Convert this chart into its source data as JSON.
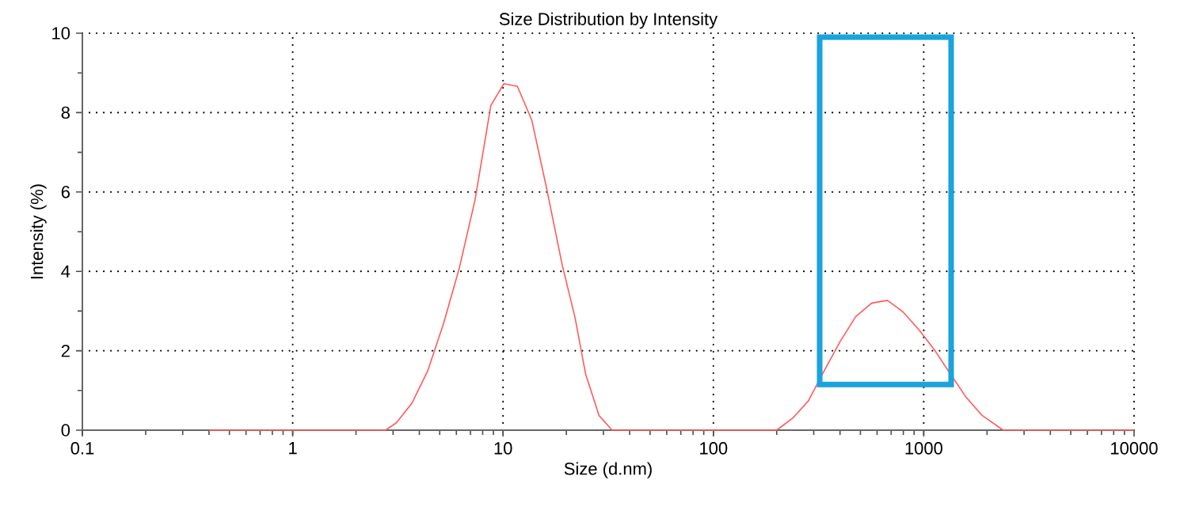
{
  "chart_data": {
    "type": "line",
    "title": "Size Distribution by Intensity",
    "xlabel": "Size (d.nm)",
    "ylabel": "Intensity (%)",
    "x": [
      0.4,
      2.76,
      3.1,
      3.68,
      4.38,
      5.21,
      6.2,
      7.36,
      8.75,
      10.1,
      11.7,
      13.7,
      16.1,
      19.1,
      22.0,
      24.7,
      28.6,
      33,
      200,
      238,
      283,
      336,
      400,
      475,
      565,
      672,
      798,
      949,
      1129,
      1342,
      1596,
      1897,
      2388,
      10000
    ],
    "values": [
      0,
      0,
      0.18,
      0.67,
      1.49,
      2.68,
      4.09,
      5.8,
      8.18,
      8.73,
      8.66,
      7.81,
      6.1,
      4.17,
      2.83,
      1.41,
      0.37,
      0,
      0,
      0.3,
      0.74,
      1.49,
      2.23,
      2.86,
      3.2,
      3.27,
      2.98,
      2.53,
      2.01,
      1.41,
      0.82,
      0.37,
      0,
      0
    ],
    "color": "#ff5a5a",
    "log": "x",
    "xlim": [
      0.1,
      10000
    ],
    "ylim": [
      0,
      10
    ],
    "xticks": [
      0.1,
      1,
      10,
      100,
      1000,
      10000
    ],
    "yticks": [
      0,
      2,
      4,
      6,
      8,
      10
    ],
    "grid": true
  }
}
